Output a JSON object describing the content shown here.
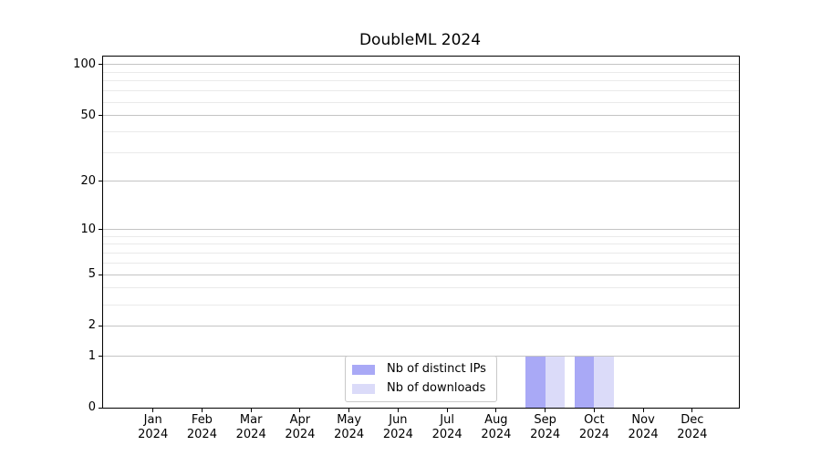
{
  "chart_data": {
    "type": "bar",
    "title": "DoubleML 2024",
    "categories": [
      {
        "month": "Jan",
        "year": "2024"
      },
      {
        "month": "Feb",
        "year": "2024"
      },
      {
        "month": "Mar",
        "year": "2024"
      },
      {
        "month": "Apr",
        "year": "2024"
      },
      {
        "month": "May",
        "year": "2024"
      },
      {
        "month": "Jun",
        "year": "2024"
      },
      {
        "month": "Jul",
        "year": "2024"
      },
      {
        "month": "Aug",
        "year": "2024"
      },
      {
        "month": "Sep",
        "year": "2024"
      },
      {
        "month": "Oct",
        "year": "2024"
      },
      {
        "month": "Nov",
        "year": "2024"
      },
      {
        "month": "Dec",
        "year": "2024"
      }
    ],
    "series": [
      {
        "name": "Nb of distinct IPs",
        "color": "#a9a9f6",
        "values": [
          0,
          0,
          0,
          0,
          0,
          0,
          0,
          0,
          1,
          1,
          0,
          0
        ]
      },
      {
        "name": "Nb of downloads",
        "color": "#dbdbf9",
        "values": [
          0,
          0,
          0,
          0,
          0,
          0,
          0,
          0,
          1,
          1,
          0,
          0
        ]
      }
    ],
    "y_axis": {
      "scale": "log10(1+y)",
      "major_ticks": [
        0,
        1,
        2,
        5,
        10,
        20,
        50,
        100
      ],
      "minor_ticks": [
        3,
        4,
        6,
        7,
        8,
        9,
        30,
        40,
        60,
        70,
        80,
        90
      ],
      "range_max": 110
    },
    "legend": {
      "position": "lower center"
    },
    "grid": "horizontal major+minor"
  },
  "colors": {
    "grid_major": "#c4c4c4",
    "grid_minor": "#eaeaea",
    "spine": "#000000",
    "legend_border": "#c9c9c9",
    "background": "#ffffff",
    "text": "#000000"
  }
}
